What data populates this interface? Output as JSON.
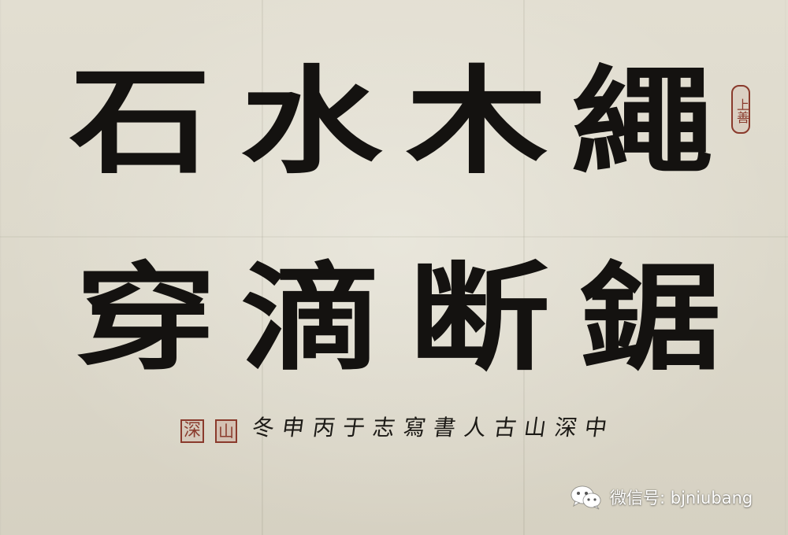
{
  "calligraphy": {
    "row1": [
      "繩",
      "木",
      "水"
    ],
    "row1_first": "石",
    "row2": [
      "鋸",
      "断",
      "滴"
    ],
    "row2_first": "穿"
  },
  "inscription": {
    "characters": [
      "中",
      "深",
      "山",
      "古",
      "人",
      "書",
      "寫",
      "志",
      "于",
      "丙",
      "申",
      "冬"
    ]
  },
  "seals": {
    "top_right": "上善",
    "signature_name": "深",
    "signature_studio": "山"
  },
  "watermark": {
    "text": "微信号: bjniubang",
    "icon": "wechat-icon"
  },
  "colors": {
    "paper": "#ddd9cc",
    "ink": "#141210",
    "seal_red": "#8a3a2c",
    "watermark_text": "#ffffff"
  }
}
